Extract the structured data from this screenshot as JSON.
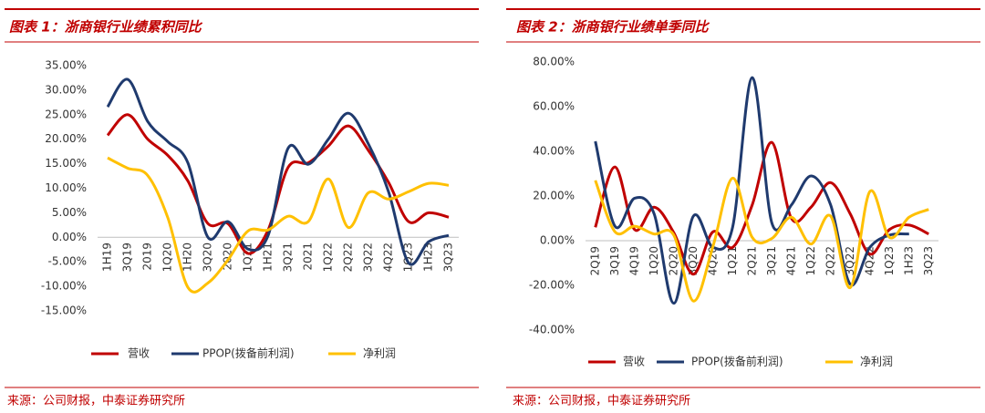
{
  "chart_data": [
    {
      "type": "line",
      "title": "图表 1：浙商银行业绩累积同比",
      "source": "来源：公司财报，中泰证券研究所",
      "categories": [
        "1H19",
        "3Q19",
        "2019",
        "1Q20",
        "1H20",
        "3Q20",
        "2020",
        "1Q21",
        "1H21",
        "3Q21",
        "2021",
        "1Q22",
        "2Q22",
        "3Q22",
        "4Q22",
        "1Q23",
        "1H23",
        "3Q23"
      ],
      "series": [
        {
          "name": "营收",
          "color": "#c00000",
          "values": [
            20.8,
            25,
            20,
            16.7,
            11.5,
            2.8,
            2.8,
            -3.3,
            1.5,
            14.3,
            15.2,
            18.6,
            22.7,
            17.7,
            11.2,
            3.2,
            5,
            4.1
          ]
        },
        {
          "name": "PPOP(拨备前利润)",
          "color": "#1f3a6e",
          "values": [
            26.6,
            32.2,
            23.6,
            19.5,
            15.2,
            0,
            3.2,
            -2.4,
            0.4,
            18.2,
            14.9,
            20,
            25.3,
            19,
            9.3,
            -5.2,
            -0.9,
            0.4
          ]
        },
        {
          "name": "净利润",
          "color": "#ffc000",
          "values": [
            16.2,
            14.1,
            12.6,
            4,
            -10.2,
            -9.3,
            -4.6,
            1.3,
            1.5,
            4.3,
            3.2,
            11.9,
            2,
            9.1,
            7.8,
            9.3,
            11,
            10.6
          ]
        }
      ],
      "ylim": [
        -15,
        35
      ],
      "yticks": [
        {
          "value": -15,
          "label": "-15.00%"
        },
        {
          "value": -10,
          "label": "-10.00%"
        },
        {
          "value": -5,
          "label": "-5.00%"
        },
        {
          "value": 0,
          "label": "0.00%"
        },
        {
          "value": 5,
          "label": "5.00%"
        },
        {
          "value": 10,
          "label": "10.00%"
        },
        {
          "value": 15,
          "label": "15.00%"
        },
        {
          "value": 20,
          "label": "20.00%"
        },
        {
          "value": 25,
          "label": "25.00%"
        },
        {
          "value": 30,
          "label": "30.00%"
        },
        {
          "value": 35,
          "label": "35.00%"
        }
      ],
      "grid": false,
      "legend": "bottom"
    },
    {
      "type": "line",
      "title": "图表 2：浙商银行业绩单季同比",
      "source": "来源：公司财报，中泰证券研究所",
      "categories": [
        "2Q19",
        "3Q19",
        "4Q19",
        "1Q20",
        "2Q20",
        "3Q20",
        "4Q20",
        "1Q21",
        "2Q21",
        "3Q21",
        "4Q21",
        "1Q22",
        "2Q22",
        "3Q22",
        "4Q22",
        "1Q23",
        "1H23",
        "3Q23"
      ],
      "series": [
        {
          "name": "营收",
          "color": "#c00000",
          "values": [
            6,
            33,
            5,
            15,
            3.6,
            -15,
            4,
            -3,
            16,
            44,
            10,
            15,
            26,
            12,
            -6,
            5,
            7,
            3
          ]
        },
        {
          "name": "PPOP(拨备前利润)",
          "color": "#1f3a6e",
          "values": [
            44.5,
            6.5,
            19,
            12,
            -28,
            11,
            -3,
            6,
            73,
            8,
            16,
            29,
            16,
            -19.5,
            -3,
            2.5,
            3,
            null
          ]
        },
        {
          "name": "净利润",
          "color": "#ffc000",
          "values": [
            27,
            4,
            6.5,
            3,
            2.5,
            -27,
            -2.5,
            28,
            1.5,
            1,
            10.5,
            -1.5,
            11,
            -21,
            22,
            1.5,
            10.5,
            14
          ]
        }
      ],
      "ylim": [
        -40,
        80
      ],
      "yticks": [
        {
          "value": -40,
          "label": "-40.00%"
        },
        {
          "value": -20,
          "label": "-20.00%"
        },
        {
          "value": 0,
          "label": "0.00%"
        },
        {
          "value": 20,
          "label": "20.00%"
        },
        {
          "value": 40,
          "label": "40.00%"
        },
        {
          "value": 60,
          "label": "60.00%"
        },
        {
          "value": 80,
          "label": "80.00%"
        }
      ],
      "grid": false,
      "legend": "bottom"
    }
  ]
}
